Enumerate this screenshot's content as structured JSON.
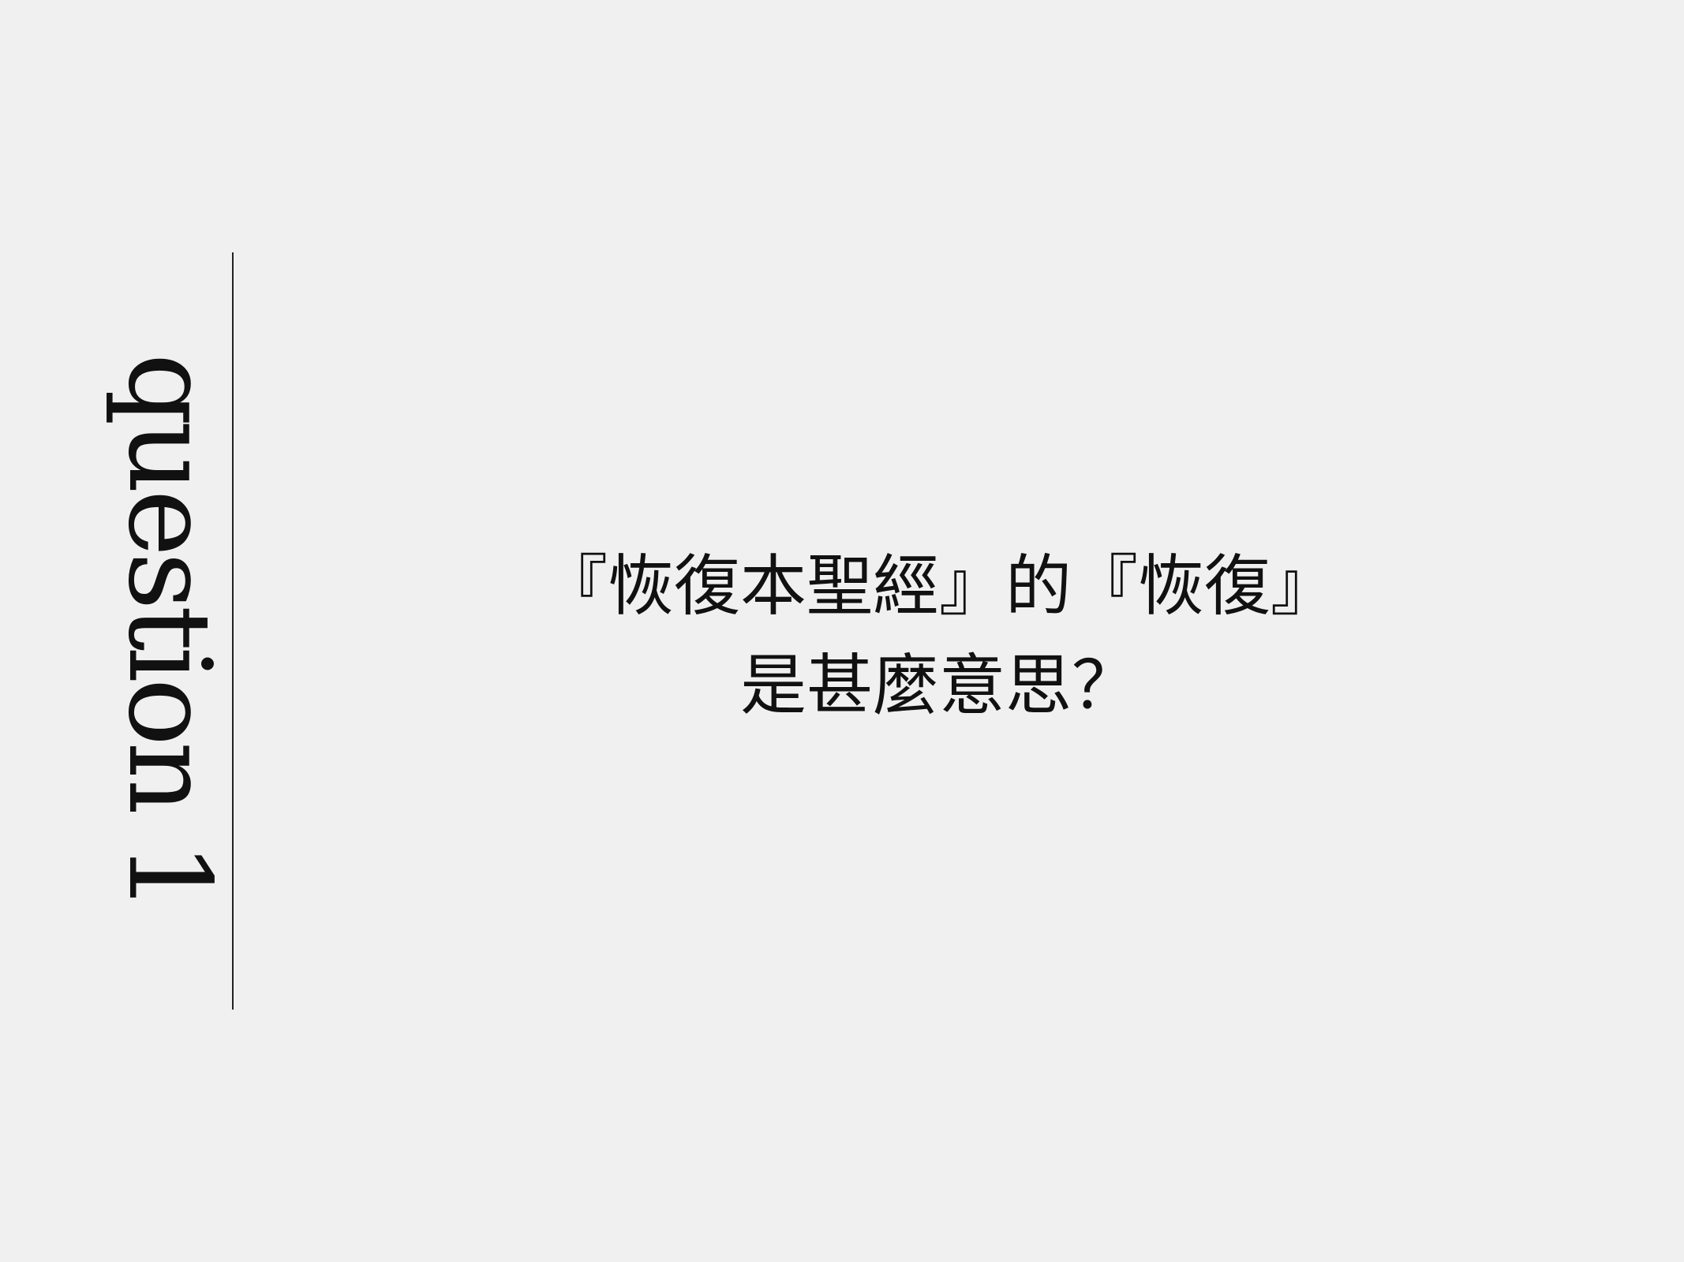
{
  "slide": {
    "side_label": "question 1",
    "question_line_1": "『恢復本聖經』的『恢復』",
    "question_line_2": "是甚麼意思？"
  }
}
